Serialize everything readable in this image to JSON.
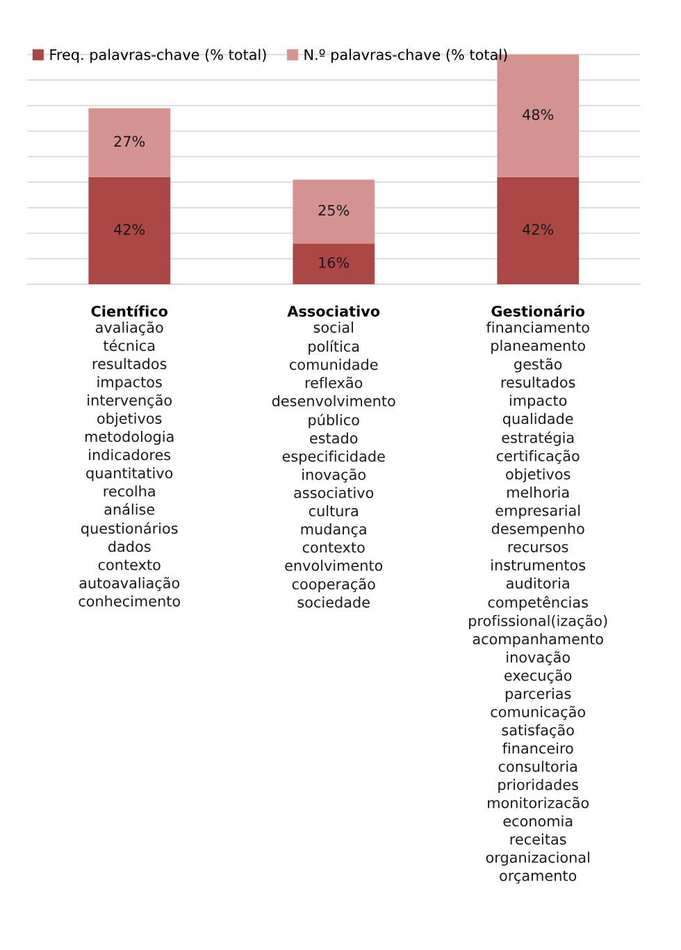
{
  "chart_data": {
    "type": "bar",
    "stacked": true,
    "categories": [
      "Científico",
      "Associativo",
      "Gestionário"
    ],
    "series": [
      {
        "name": "Freq. palavras-chave (% total)",
        "color": "#ab4744",
        "values": [
          42,
          16,
          42
        ],
        "value_labels": [
          "42%",
          "16%",
          "42%"
        ]
      },
      {
        "name": "N.º palavras-chave (% total)",
        "color": "#d49391",
        "values": [
          27,
          25,
          48
        ],
        "value_labels": [
          "27%",
          "25%",
          "48%"
        ]
      }
    ],
    "tick_labels": "x",
    "grid": "y",
    "legend": "top left",
    "annotations": [
      "avaliação\ntécnica\nresultados\nimpactos\nintervenção\nobjetivos\nmetodologia\nindicadores\nquantitativo\nrecolha\nanálise\nquestionários\ndados\ncontexto\nautoavaliação\nconhecimento",
      "social\npolítica\ncomunidade\nreflexão\ndesenvolvimento\npúblico\nestado\nespecificidade\ninovação\nassociativo\ncultura\nmudança\ncontexto\nenvolvimento\ncooperação\nsociedade",
      "financiamento\nplaneamento\ngestão\nresultados\nimpacto\nqualidade\nestratégia\ncertificação\nobjetivos\nmelhoria\nempresarial\ndesempenho\nrecursos\ninstrumentos\nauditoria\ncompetências\nprofissional(ização)\nacompanhamento\ninovação\nexecução\nparcerias\ncomunicação\nsatisfação\nfinanceiro\nconsultoria\nprioridades\nmonitorizacão\neconomia\nreceitas\norganizacional\norçamento"
    ]
  }
}
